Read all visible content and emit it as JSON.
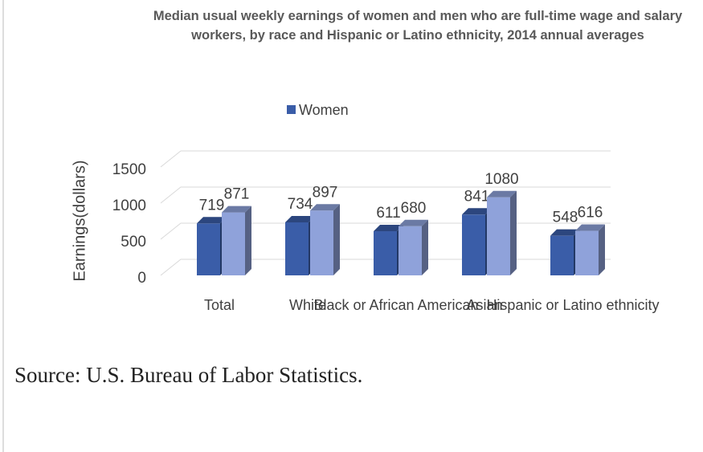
{
  "chart_data": {
    "type": "bar3d",
    "title": "Median usual weekly earnings of women and men who are full-time wage and salary workers, by race and Hispanic or Latino ethnicity, 2014 annual averages",
    "ylabel": "Earnings(dollars)",
    "categories": [
      "Total",
      "White",
      "Black or African American",
      "Asian",
      "Hispanic or Latino ethnicity"
    ],
    "series": [
      {
        "name": "Women",
        "color": "#3a5da8",
        "values": [
          719,
          734,
          611,
          841,
          548
        ]
      },
      {
        "color": "#8fa2da",
        "values": [
          871,
          897,
          680,
          1080,
          616
        ]
      }
    ],
    "ylim": [
      0,
      1500
    ],
    "yticks": [
      0,
      500,
      1000,
      1500
    ],
    "grid": true,
    "legend": "top"
  },
  "source": "Source: U.S. Bureau of Labor Statistics."
}
